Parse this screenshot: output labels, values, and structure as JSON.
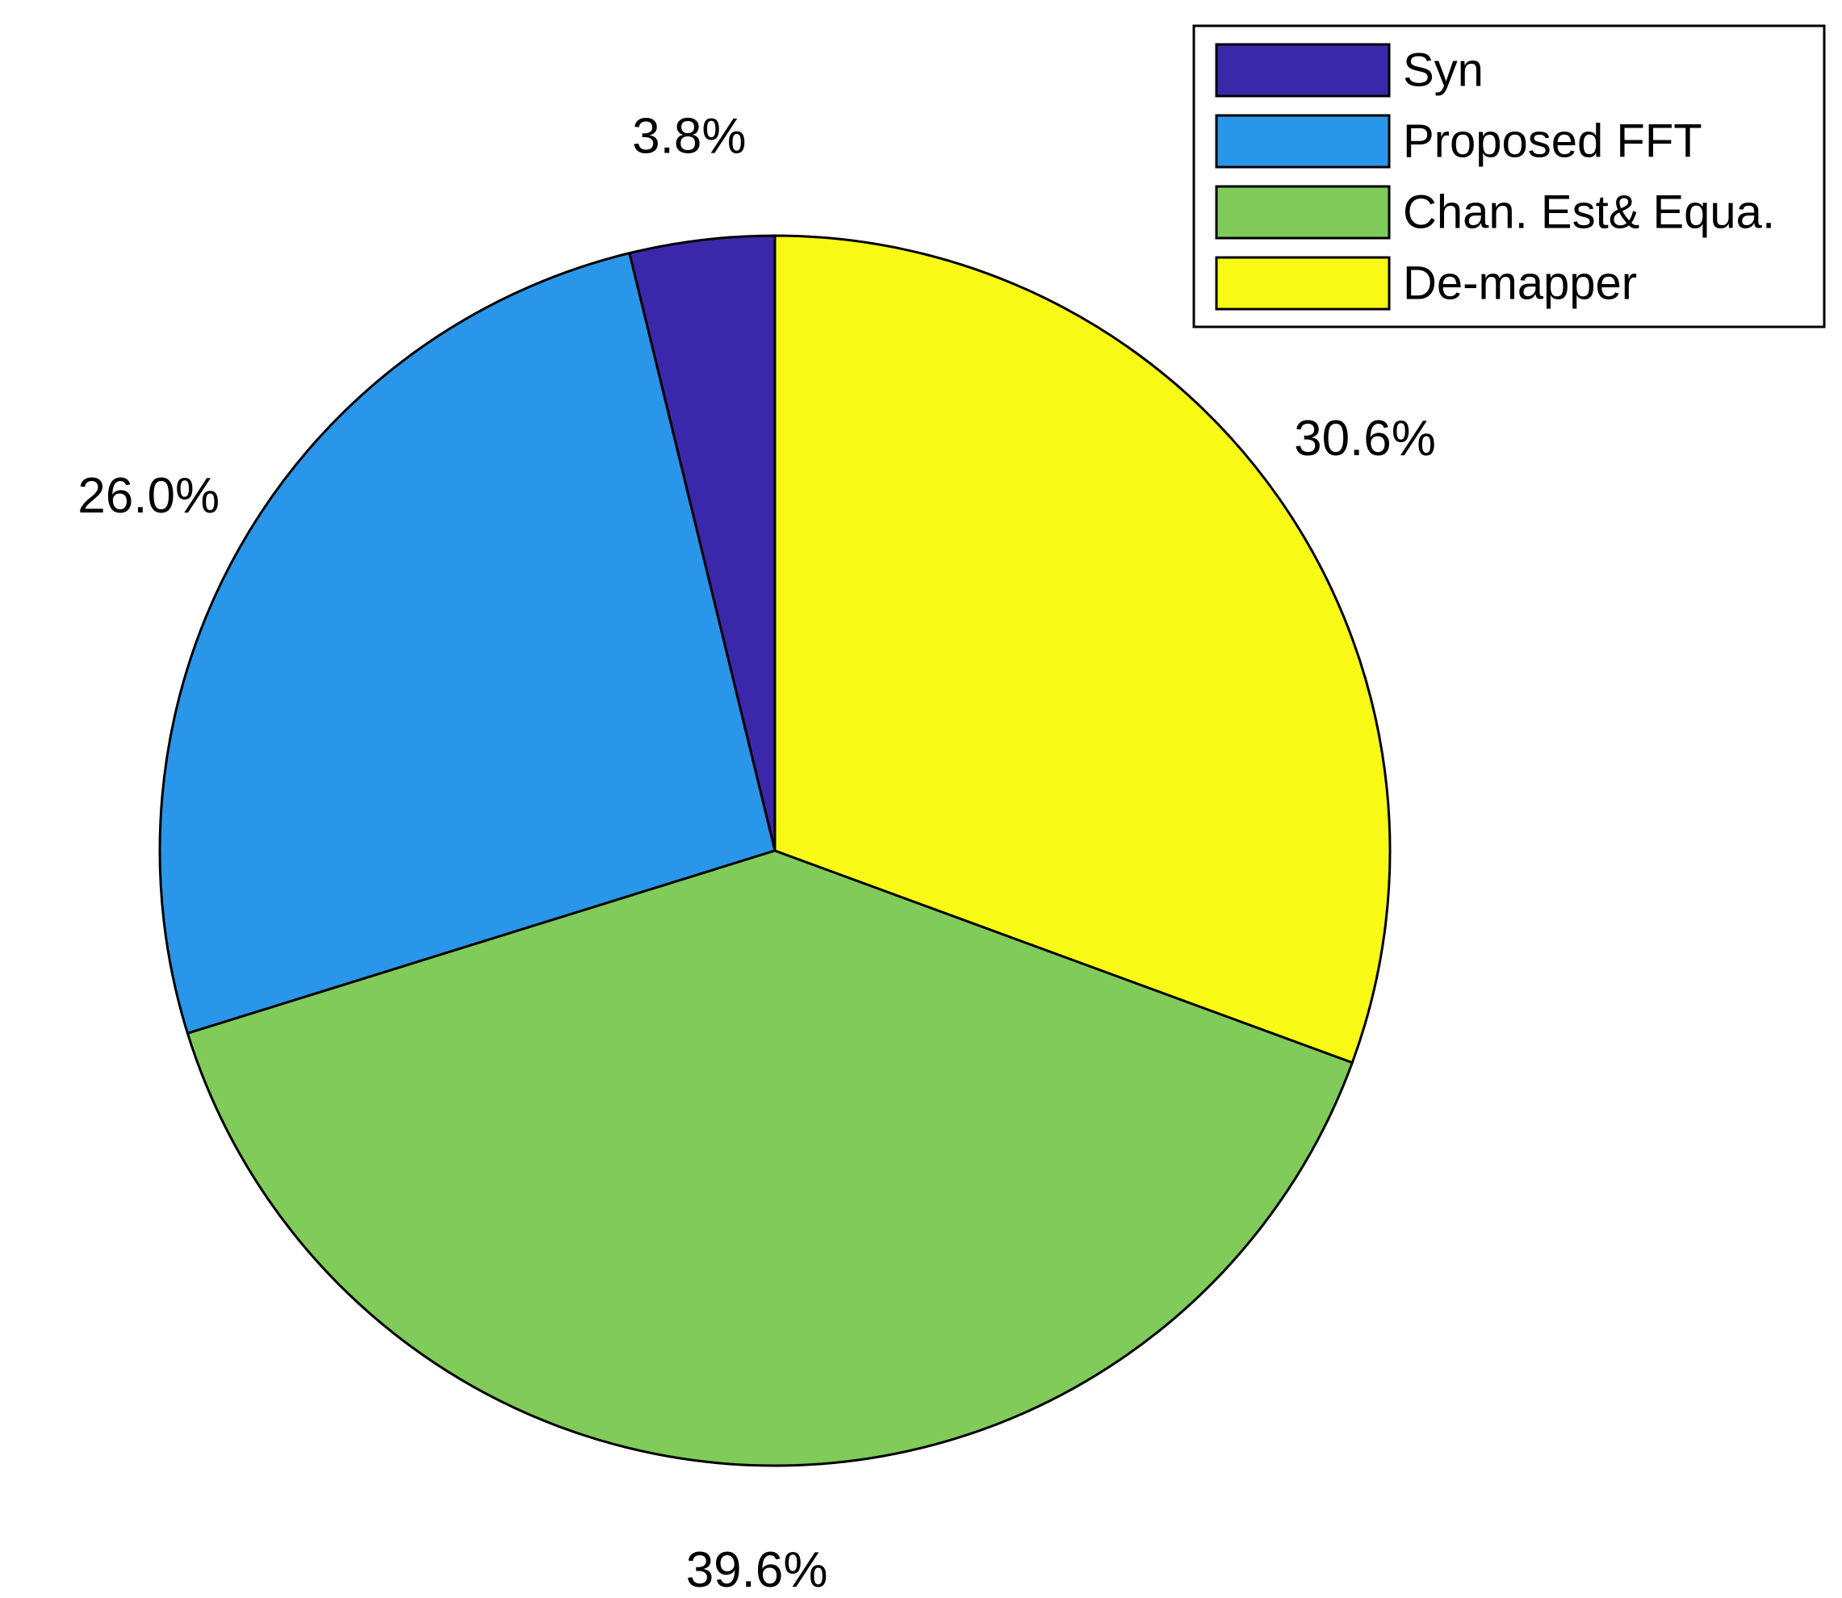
{
  "chart_data": {
    "type": "pie",
    "slices": [
      {
        "label": "Syn",
        "value": 3.8,
        "value_label": "3.8%",
        "color": "#3b27a9"
      },
      {
        "label": "Proposed FFT",
        "value": 26.0,
        "value_label": "26.0%",
        "color": "#2a96e9"
      },
      {
        "label": "Chan. Est& Equa.",
        "value": 39.6,
        "value_label": "39.6%",
        "color": "#80cb59"
      },
      {
        "label": "De-mapper",
        "value": 30.6,
        "value_label": "30.6%",
        "color": "#f8fa16"
      }
    ],
    "direction": "counterclockwise",
    "start": "top",
    "legend": "top-right"
  }
}
